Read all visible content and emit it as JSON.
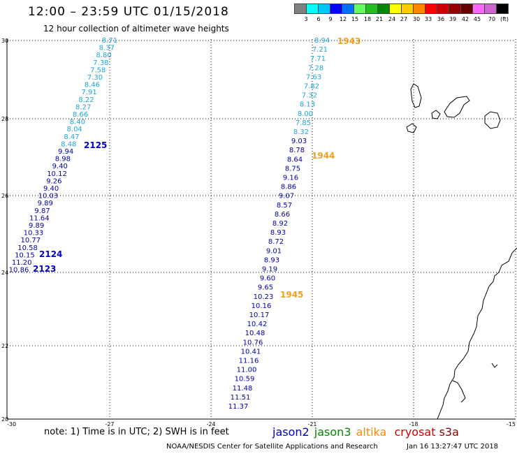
{
  "header": {
    "title": "12:00 – 23:59 UTC 01/15/2018",
    "subtitle": "12 hour collection of altimeter wave heights"
  },
  "colorbar": {
    "colors": [
      "#808080",
      "#00ffff",
      "#00c8ff",
      "#0000ff",
      "#0070ff",
      "#60ff60",
      "#20c020",
      "#008800",
      "#ffff00",
      "#ffcc00",
      "#ff8800",
      "#ff0000",
      "#cc0000",
      "#990000",
      "#660000",
      "#ff66ff",
      "#cc66cc",
      "#000000"
    ],
    "labels": [
      "3",
      "6",
      "9",
      "12",
      "15",
      "18",
      "21",
      "24",
      "27",
      "30",
      "33",
      "36",
      "39",
      "42",
      "45",
      "70",
      "(ft)"
    ]
  },
  "axes": {
    "x_ticks": [
      "-30",
      "-27",
      "-24",
      "-21",
      "-18",
      "-15"
    ],
    "y_ticks": [
      "30",
      "28",
      "26",
      "24",
      "22",
      "20"
    ]
  },
  "tracks": [
    {
      "values": [
        "8.71",
        "8.37",
        "8.80",
        "7.38",
        "7.58",
        "7.30",
        "8.46",
        "7.91",
        "8.22",
        "8.27",
        "8.66",
        "8.40",
        "8.04",
        "8.47",
        "8.48",
        "9.94",
        "8.98",
        "9.40",
        "10.12",
        "9.26",
        "9.40",
        "10.03",
        "9.89",
        "9.87",
        "11.64",
        "9.89",
        "10.33",
        "10.77",
        "10.58",
        "10.15",
        "11.20",
        "10.86"
      ],
      "times": [
        {
          "label": "2125"
        },
        {
          "label": "2124"
        },
        {
          "label": "2123"
        }
      ]
    },
    {
      "values": [
        "8.94",
        "7.21",
        "7.71",
        "7.28",
        "7.63",
        "7.82",
        "7.32",
        "8.13",
        "8.00",
        "7.85",
        "8.32",
        "9.03",
        "8.78",
        "8.64",
        "8.75",
        "9.16",
        "8.86",
        "9.07",
        "8.57",
        "8.66",
        "8.92",
        "8.93",
        "8.72",
        "9.01",
        "8.93",
        "9.19",
        "9.60",
        "9.65",
        "10.23",
        "10.16",
        "10.17",
        "10.42",
        "10.48",
        "10.76",
        "10.41",
        "11.16",
        "11.00",
        "10.59",
        "11.48",
        "11.51",
        "11.37"
      ],
      "times": [
        {
          "label": "1943"
        },
        {
          "label": "1944"
        },
        {
          "label": "1945"
        }
      ]
    }
  ],
  "value_colors": {
    "light": "#1ea5d6",
    "dark": "#0000aa",
    "time_jason2": "#0000cc",
    "time_altika": "#f0a020"
  },
  "note": {
    "text": "note: 1) Time is in UTC; 2) SWH is in feet",
    "jason2": "jason2",
    "jason3": "jason3",
    "altika": "altika",
    "cryosat": "cryosat",
    "s3a": "s3a",
    "colors": {
      "jason2": "#0000cc",
      "jason3": "#008800",
      "altika": "#ff8800",
      "cryosat": "#cc0000",
      "s3a": "#880000"
    }
  },
  "footer": {
    "credit": "NOAA/NESDIS Center for Satellite Applications and Research",
    "timestamp": "Jan 16 13:27:47 UTC 2018"
  }
}
